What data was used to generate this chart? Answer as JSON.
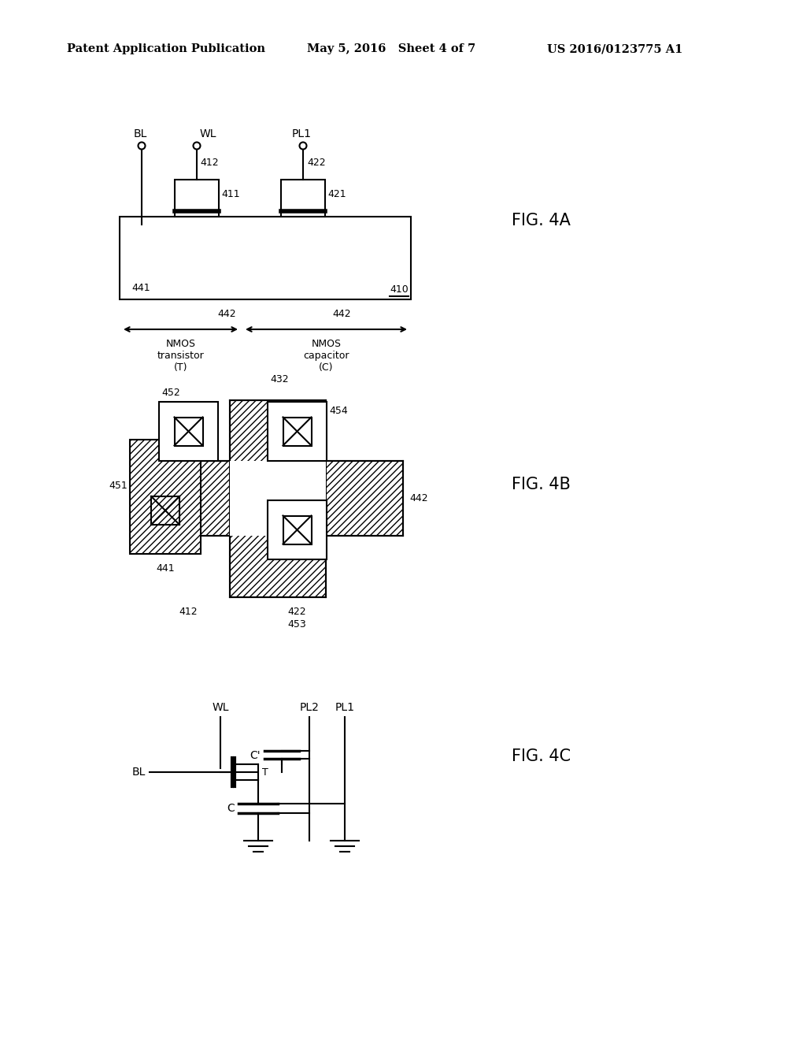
{
  "header_left": "Patent Application Publication",
  "header_mid": "May 5, 2016   Sheet 4 of 7",
  "header_right": "US 2016/0123775 A1",
  "fig4a_label": "FIG. 4A",
  "fig4b_label": "FIG. 4B",
  "fig4c_label": "FIG. 4C",
  "bg_color": "#ffffff",
  "line_color": "#000000"
}
